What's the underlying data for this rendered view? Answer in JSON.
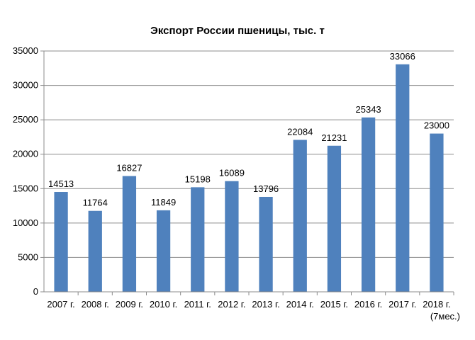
{
  "chart_data": {
    "type": "bar",
    "title": "Экспорт России пшеницы, тыс. т",
    "xlabel": "",
    "ylabel": "",
    "categories": [
      "2007 г.",
      "2008 г.",
      "2009 г.",
      "2010 г.",
      "2011 г.",
      "2012 г.",
      "2013 г.",
      "2014 г.",
      "2015 г.",
      "2016 г.",
      "2017 г.",
      "2018 г. (7мес.)"
    ],
    "values": [
      14513,
      11764,
      16827,
      11849,
      15198,
      16089,
      13796,
      22084,
      21231,
      25343,
      33066,
      23000
    ],
    "ylim": [
      0,
      35000
    ],
    "yticks": [
      0,
      5000,
      10000,
      15000,
      20000,
      25000,
      30000,
      35000
    ],
    "grid": true,
    "legend": "none",
    "bar_color": "#4f81bd"
  }
}
